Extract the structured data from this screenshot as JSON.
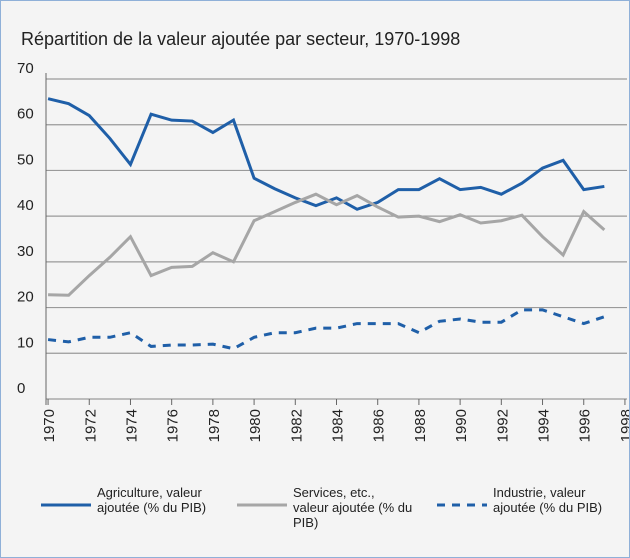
{
  "chart_data": {
    "type": "line",
    "title": "Répartition de la valeur ajoutée par secteur, 1970-1998",
    "x": [
      1970,
      1971,
      1972,
      1973,
      1974,
      1975,
      1976,
      1977,
      1978,
      1979,
      1980,
      1981,
      1982,
      1983,
      1984,
      1985,
      1986,
      1987,
      1988,
      1989,
      1990,
      1991,
      1992,
      1993,
      1994,
      1995,
      1996,
      1997
    ],
    "series": [
      {
        "name": "Agriculture, valeur ajoutée (% du PIB)",
        "color": "#1f5fa8",
        "dash": false,
        "values": [
          65.7,
          64.6,
          62,
          57,
          51.3,
          62.3,
          61,
          60.8,
          58.3,
          61,
          48.3,
          46,
          44,
          42.3,
          44,
          41.5,
          43,
          45.8,
          45.8,
          48.2,
          45.8,
          46.3,
          44.8,
          47.2,
          50.5,
          52.2,
          45.8,
          46.5
        ]
      },
      {
        "name": "Services, etc., valeur ajoutée (% du PIB)",
        "color": "#a6a6a6",
        "dash": false,
        "values": [
          22.8,
          22.7,
          27,
          31,
          35.5,
          27,
          28.8,
          29,
          32,
          30,
          39,
          41,
          43,
          44.8,
          42.5,
          44.5,
          42,
          39.8,
          40,
          38.8,
          40.3,
          38.5,
          39,
          40.2,
          35.5,
          31.5,
          41,
          37
        ]
      },
      {
        "name": "Industrie, valeur ajoutée (% du PIB)",
        "color": "#1f5fa8",
        "dash": true,
        "values": [
          13,
          12.5,
          13.5,
          13.5,
          14.5,
          11.5,
          11.8,
          11.8,
          12,
          11,
          13.5,
          14.5,
          14.5,
          15.5,
          15.5,
          16.5,
          16.5,
          16.5,
          14.5,
          17,
          17.5,
          16.8,
          16.8,
          19.5,
          19.5,
          18,
          16.5,
          18
        ]
      }
    ],
    "xlim": [
      1969.9,
      1998.1
    ],
    "xticks": [
      1970,
      1972,
      1974,
      1976,
      1978,
      1980,
      1982,
      1984,
      1986,
      1988,
      1990,
      1992,
      1994,
      1996,
      1998
    ],
    "ylim": [
      0,
      70
    ],
    "yticks": [
      0,
      10,
      20,
      30,
      40,
      50,
      60,
      70
    ],
    "grid": true
  }
}
